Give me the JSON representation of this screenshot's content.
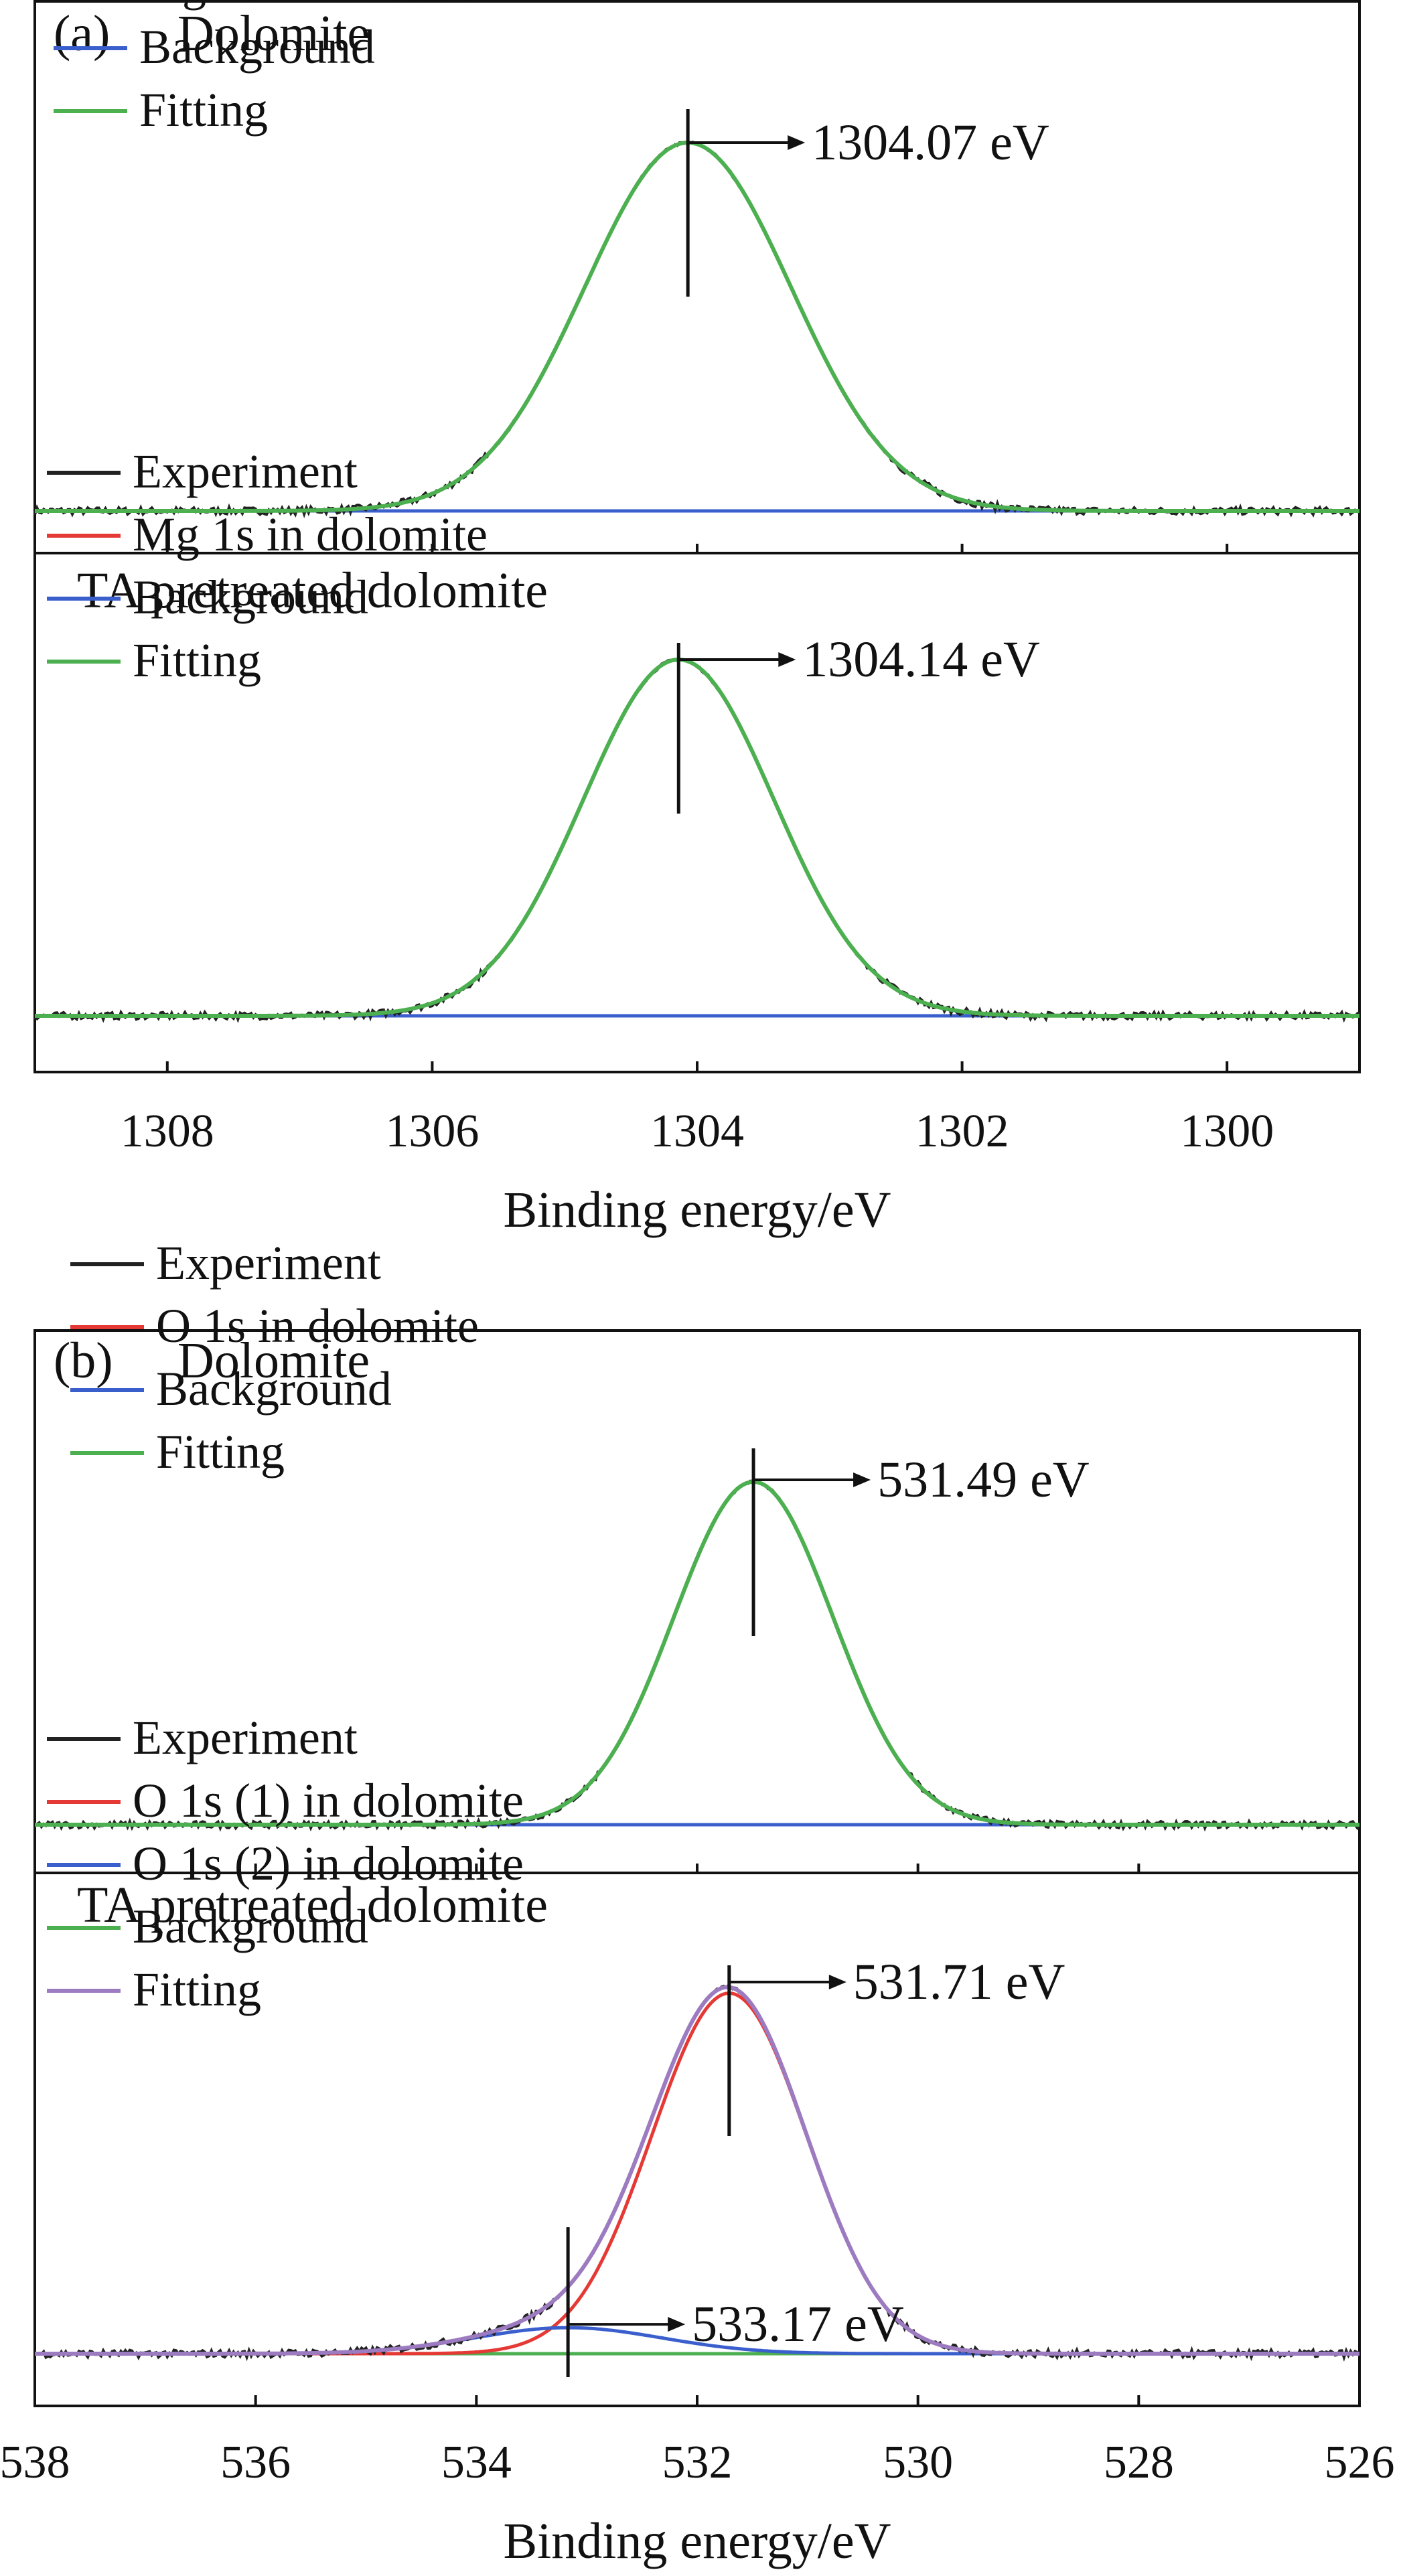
{
  "chart_data": [
    {
      "type": "line",
      "panel_label": "(a)",
      "xlabel": "Binding energy/eV",
      "xlim": [
        1309,
        1299
      ],
      "x_reversed": true,
      "x_ticks": [
        1308,
        1306,
        1304,
        1302,
        1300
      ],
      "subplots": [
        {
          "title": "Dolomite",
          "legend_position": "top-left",
          "series": [
            {
              "name": "Experiment",
              "color": "#222222"
            },
            {
              "name": "Mg 1s in dolomite",
              "color": "#e53935"
            },
            {
              "name": "Background",
              "color": "#3a5fcd"
            },
            {
              "name": "Fitting",
              "color": "#4caf50"
            }
          ],
          "peaks": [
            {
              "center": 1304.07,
              "height": 1.0,
              "sigma": 0.78,
              "color_series": 1
            }
          ],
          "background_level": 0.0,
          "annotations": [
            {
              "x": 1304.07,
              "label": "1304.07 eV"
            }
          ]
        },
        {
          "title": "TA pretreated dolomite",
          "legend_position": "top-left",
          "series": [
            {
              "name": "Experiment",
              "color": "#222222"
            },
            {
              "name": "Mg 1s in dolomite",
              "color": "#e53935"
            },
            {
              "name": "Background",
              "color": "#3a5fcd"
            },
            {
              "name": "Fitting",
              "color": "#4caf50"
            }
          ],
          "peaks": [
            {
              "center": 1304.14,
              "height": 1.0,
              "sigma": 0.72,
              "color_series": 1
            }
          ],
          "background_level": 0.0,
          "annotations": [
            {
              "x": 1304.14,
              "label": "1304.14 eV"
            }
          ]
        }
      ]
    },
    {
      "type": "line",
      "panel_label": "(b)",
      "xlabel": "Binding energy/eV",
      "xlim": [
        538,
        526
      ],
      "x_reversed": true,
      "x_ticks": [
        538,
        536,
        534,
        532,
        530,
        528,
        526
      ],
      "subplots": [
        {
          "title": "Dolomite",
          "legend_position": "top-left",
          "series": [
            {
              "name": "Experiment",
              "color": "#222222"
            },
            {
              "name": "O 1s in dolomite",
              "color": "#e53935"
            },
            {
              "name": "Background",
              "color": "#3a5fcd"
            },
            {
              "name": "Fitting",
              "color": "#4caf50"
            }
          ],
          "peaks": [
            {
              "center": 531.49,
              "height": 1.0,
              "sigma": 0.72,
              "color_series": 1
            }
          ],
          "background_level": 0.0,
          "annotations": [
            {
              "x": 531.49,
              "label": "531.49 eV"
            }
          ]
        },
        {
          "title": "TA pretreated dolomite",
          "legend_position": "top-left",
          "series": [
            {
              "name": "Experiment",
              "color": "#222222"
            },
            {
              "name": "O 1s (1) in dolomite",
              "color": "#e53935"
            },
            {
              "name": "O 1s (2) in dolomite",
              "color": "#3a5fcd"
            },
            {
              "name": "Background",
              "color": "#4caf50"
            },
            {
              "name": "Fitting",
              "color": "#9c7bc0"
            }
          ],
          "peaks": [
            {
              "center": 531.71,
              "height": 0.97,
              "sigma": 0.7,
              "color_series": 1
            },
            {
              "center": 533.17,
              "height": 0.07,
              "sigma": 0.85,
              "color_series": 2
            }
          ],
          "background_level": 0.0,
          "annotations": [
            {
              "x": 531.71,
              "label": "531.71 eV"
            },
            {
              "x": 533.17,
              "label": "533.17 eV"
            }
          ]
        }
      ]
    }
  ]
}
